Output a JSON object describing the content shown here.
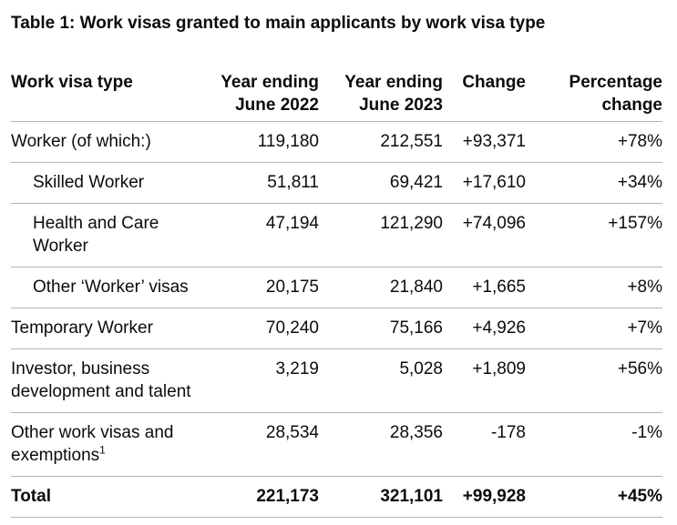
{
  "page": {
    "background": "#ffffff",
    "text_color": "#0b0c0c",
    "border_color": "#b1b4b6"
  },
  "chart_data": {
    "type": "table",
    "title": "Table 1: Work visas granted to main applicants by work visa type",
    "columns": [
      "Work visa type",
      "Year ending June 2022",
      "Year ending June 2023",
      "Change",
      "Percentage change"
    ],
    "rows": [
      {
        "label": "Worker (of which:)",
        "indent": false,
        "values": [
          "119,180",
          "212,551",
          "+93,371",
          "+78%"
        ]
      },
      {
        "label": "Skilled Worker",
        "indent": true,
        "values": [
          "51,811",
          "69,421",
          "+17,610",
          "+34%"
        ]
      },
      {
        "label": "Health and Care Worker",
        "indent": true,
        "values": [
          "47,194",
          "121,290",
          "+74,096",
          "+157%"
        ]
      },
      {
        "label": "Other ‘Worker’ visas",
        "indent": true,
        "values": [
          "20,175",
          "21,840",
          "+1,665",
          "+8%"
        ]
      },
      {
        "label": "Temporary Worker",
        "indent": false,
        "values": [
          "70,240",
          "75,166",
          "+4,926",
          "+7%"
        ]
      },
      {
        "label": "Investor, business development and talent",
        "indent": false,
        "values": [
          "3,219",
          "5,028",
          "+1,809",
          "+56%"
        ]
      },
      {
        "label": "Other work visas and exemptions",
        "footnote": "1",
        "indent": false,
        "values": [
          "28,534",
          "28,356",
          "-178",
          "-1%"
        ]
      },
      {
        "label": "Total",
        "bold": true,
        "indent": false,
        "values": [
          "221,173",
          "321,101",
          "+99,928",
          "+45%"
        ]
      }
    ]
  }
}
